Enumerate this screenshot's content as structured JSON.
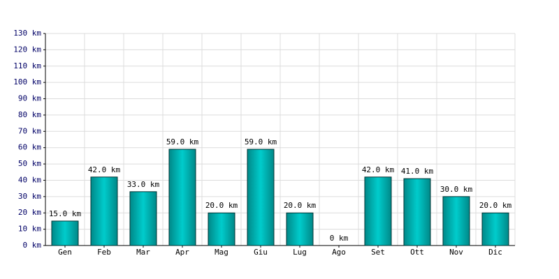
{
  "chart_data": {
    "type": "bar",
    "categories": [
      "Gen",
      "Feb",
      "Mar",
      "Apr",
      "Mag",
      "Giu",
      "Lug",
      "Ago",
      "Set",
      "Ott",
      "Nov",
      "Dic"
    ],
    "values": [
      15,
      42,
      33,
      59,
      20,
      59,
      20,
      0,
      42,
      41,
      30,
      20
    ],
    "value_labels": [
      "15.0 km",
      "42.0 km",
      "33.0 km",
      "59.0 km",
      "20.0 km",
      "59.0 km",
      "20.0 km",
      "0 km",
      "42.0 km",
      "41.0 km",
      "30.0 km",
      "20.0 km"
    ],
    "color": "#00cccc",
    "ylim": [
      0,
      130
    ],
    "yticks": [
      {
        "value": 0,
        "label": "0 km"
      },
      {
        "value": 10,
        "label": "10 km"
      },
      {
        "value": 20,
        "label": "20 km"
      },
      {
        "value": 30,
        "label": "30 km"
      },
      {
        "value": 40,
        "label": "40 km"
      },
      {
        "value": 50,
        "label": "50 km"
      },
      {
        "value": 60,
        "label": "60 km"
      },
      {
        "value": 70,
        "label": "70 km"
      },
      {
        "value": 80,
        "label": "80 km"
      },
      {
        "value": 90,
        "label": "90 km"
      },
      {
        "value": 100,
        "label": "100 km"
      },
      {
        "value": 110,
        "label": "110 km"
      },
      {
        "value": 120,
        "label": "120 km"
      },
      {
        "value": 130,
        "label": "130 km"
      }
    ],
    "grid": true
  }
}
